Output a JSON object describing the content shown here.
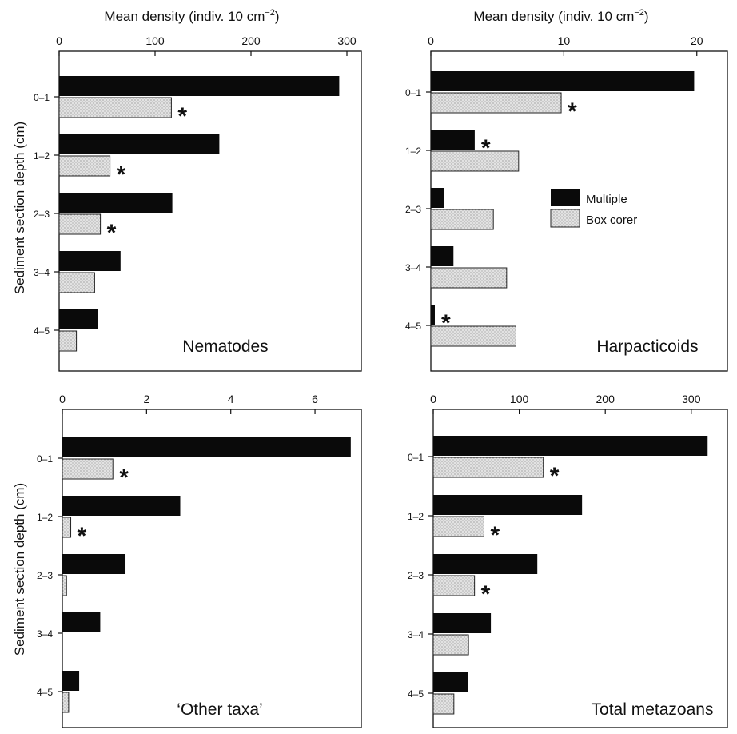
{
  "figure": {
    "top_xlabel_left": "Mean density (indiv. 10 cm",
    "top_xlabel_right": "Mean density (indiv. 10 cm",
    "xlabel_superscript": "−2",
    "xlabel_close": ")",
    "ylabel_top": "Sediment section depth (cm)",
    "ylabel_bottom": "Sediment section depth (cm)"
  },
  "legend": {
    "multiple": "Multiple",
    "box_corer": "Box corer"
  },
  "colors": {
    "multiple": "#0a0a0a",
    "box_corer": "#e2e2e2",
    "box_corer_stipple": "#555555"
  },
  "chart_data": [
    {
      "type": "bar",
      "orientation": "horizontal",
      "panel": "top-left",
      "annotation": "Nematodes",
      "categories": [
        "0-1",
        "1-2",
        "2-3",
        "3-4",
        "4-5"
      ],
      "xticks": [
        0,
        100,
        200,
        300
      ],
      "xlim": [
        0,
        315
      ],
      "series": [
        {
          "name": "Multiple",
          "values": [
            292,
            167,
            118,
            64,
            40
          ]
        },
        {
          "name": "Box corer",
          "values": [
            117,
            53,
            43,
            37,
            18
          ]
        }
      ],
      "significant": {
        "Multiple": [
          false,
          false,
          false,
          false,
          false
        ],
        "Box corer": [
          true,
          true,
          true,
          false,
          false
        ]
      }
    },
    {
      "type": "bar",
      "orientation": "horizontal",
      "panel": "top-right",
      "annotation": "Harpacticoids",
      "categories": [
        "0-1",
        "1-2",
        "2-3",
        "3-4",
        "4-5"
      ],
      "xticks": [
        0,
        10,
        20
      ],
      "xlim": [
        0,
        22.3
      ],
      "legend_position": "middle-right",
      "series": [
        {
          "name": "Multiple",
          "values": [
            19.8,
            3.3,
            1.0,
            1.7,
            0.3
          ]
        },
        {
          "name": "Box corer",
          "values": [
            9.8,
            6.6,
            4.7,
            5.7,
            6.4
          ]
        }
      ],
      "significant": {
        "Multiple": [
          false,
          true,
          false,
          false,
          true
        ],
        "Box corer": [
          true,
          false,
          false,
          false,
          false
        ]
      }
    },
    {
      "type": "bar",
      "orientation": "horizontal",
      "panel": "bottom-left",
      "annotation": "‘Other taxa’",
      "categories": [
        "0-1",
        "1-2",
        "2-3",
        "3-4",
        "4-5"
      ],
      "xticks": [
        0,
        2,
        4,
        6
      ],
      "xlim": [
        0,
        7.1
      ],
      "series": [
        {
          "name": "Multiple",
          "values": [
            6.85,
            2.8,
            1.5,
            0.9,
            0.4
          ]
        },
        {
          "name": "Box corer",
          "values": [
            1.2,
            0.2,
            0.1,
            0.0,
            0.15
          ]
        }
      ],
      "significant": {
        "Multiple": [
          false,
          false,
          false,
          false,
          false
        ],
        "Box corer": [
          true,
          true,
          false,
          false,
          false
        ]
      }
    },
    {
      "type": "bar",
      "orientation": "horizontal",
      "panel": "bottom-right",
      "annotation": "Total metazoans",
      "categories": [
        "0-1",
        "1-2",
        "2-3",
        "3-4",
        "4-5"
      ],
      "xticks": [
        0,
        100,
        200,
        300
      ],
      "xlim": [
        0,
        342
      ],
      "series": [
        {
          "name": "Multiple",
          "values": [
            319,
            173,
            121,
            67,
            40
          ]
        },
        {
          "name": "Box corer",
          "values": [
            128,
            59,
            48,
            41,
            24
          ]
        }
      ],
      "significant": {
        "Multiple": [
          false,
          false,
          false,
          false,
          false
        ],
        "Box corer": [
          true,
          true,
          true,
          false,
          false
        ]
      }
    }
  ]
}
